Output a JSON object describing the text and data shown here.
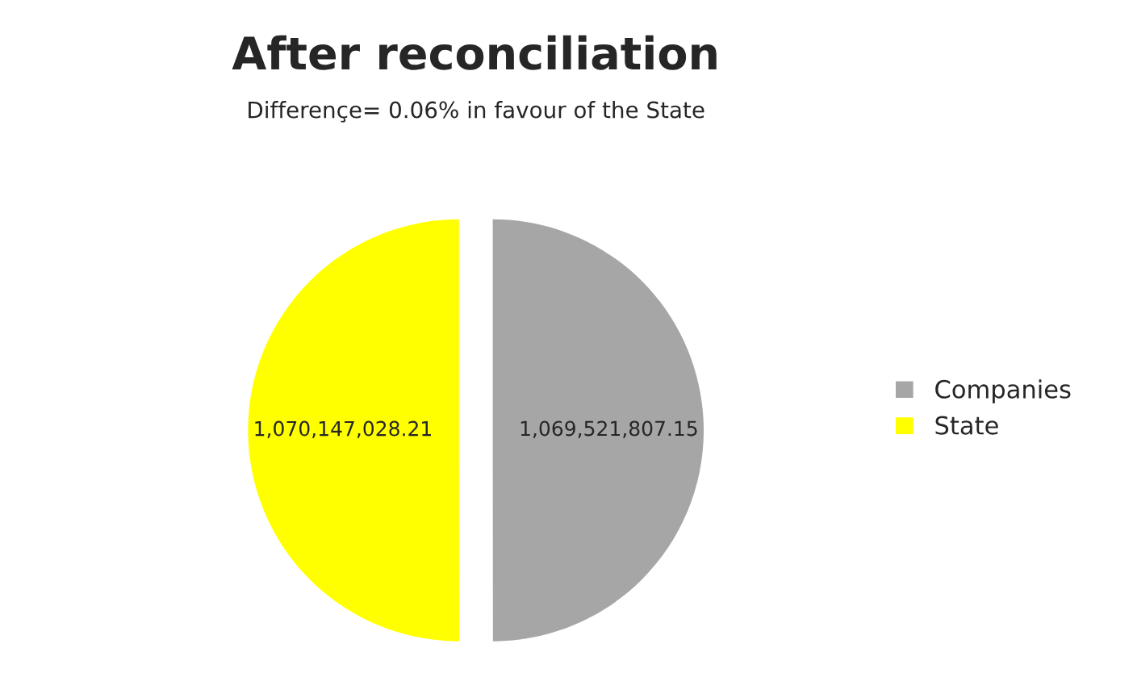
{
  "chart_data": {
    "type": "pie",
    "title": "After reconciliation",
    "subtitle": "Differençe= 0.06% in favour of the State",
    "categories": [
      "Companies",
      "State"
    ],
    "values": [
      1069521807.15,
      1070147028.21
    ],
    "colors": [
      "#a6a6a6",
      "#ffff00"
    ],
    "value_labels": [
      "1,069,521,807.15",
      "1,070,147,028.21"
    ],
    "legend": "right"
  }
}
